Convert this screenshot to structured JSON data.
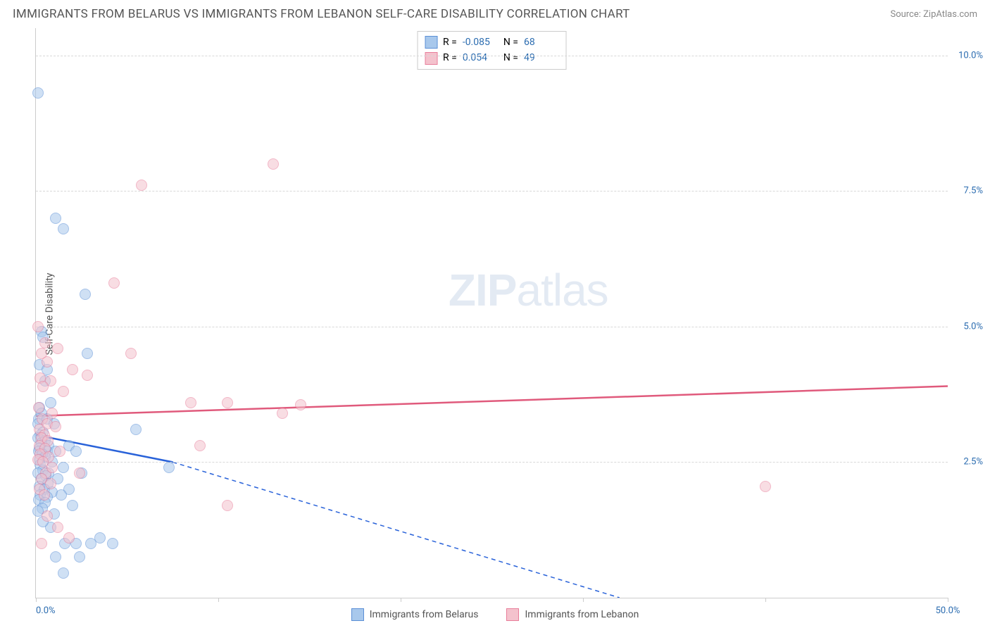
{
  "header": {
    "title": "IMMIGRANTS FROM BELARUS VS IMMIGRANTS FROM LEBANON SELF-CARE DISABILITY CORRELATION CHART",
    "source": "Source: ZipAtlas.com"
  },
  "chart": {
    "type": "scatter",
    "y_axis_label": "Self-Care Disability",
    "background_color": "#ffffff",
    "grid_color": "#d8d8d8",
    "axis_color": "#cccccc",
    "tick_label_color": "#2b6cb0",
    "label_color": "#555555",
    "xlim": [
      0,
      50
    ],
    "ylim": [
      0,
      10.5
    ],
    "x_ticks": [
      0,
      10,
      20,
      30,
      40,
      50
    ],
    "x_tick_labels": [
      "0.0%",
      "",
      "",
      "",
      "",
      "50.0%"
    ],
    "y_gridlines": [
      2.5,
      5.0,
      7.5,
      10.0
    ],
    "y_tick_labels": [
      "2.5%",
      "5.0%",
      "7.5%",
      "10.0%"
    ],
    "point_radius": 8,
    "point_opacity": 0.55,
    "watermark": "ZIPatlas",
    "series": [
      {
        "name": "Immigrants from Belarus",
        "fill": "#a8c8ec",
        "stroke": "#5b8fd6",
        "trend_color": "#2962d9",
        "trend_solid": {
          "x1": 0,
          "y1": 3.0,
          "x2": 7.5,
          "y2": 2.5
        },
        "trend_dashed": {
          "x1": 7.5,
          "y1": 2.5,
          "x2": 32,
          "y2": 0
        },
        "R": "-0.085",
        "N": "68",
        "points": [
          [
            0.1,
            9.3
          ],
          [
            1.1,
            7.0
          ],
          [
            1.5,
            6.8
          ],
          [
            2.7,
            5.6
          ],
          [
            0.3,
            4.9
          ],
          [
            0.4,
            4.8
          ],
          [
            2.8,
            4.5
          ],
          [
            0.2,
            4.3
          ],
          [
            0.6,
            4.2
          ],
          [
            0.5,
            4.0
          ],
          [
            0.8,
            3.6
          ],
          [
            0.2,
            3.5
          ],
          [
            0.3,
            3.4
          ],
          [
            0.15,
            3.3
          ],
          [
            0.6,
            3.3
          ],
          [
            1.0,
            3.2
          ],
          [
            0.1,
            3.2
          ],
          [
            5.5,
            3.1
          ],
          [
            0.4,
            3.05
          ],
          [
            0.25,
            3.0
          ],
          [
            0.1,
            2.95
          ],
          [
            0.5,
            2.9
          ],
          [
            0.3,
            2.85
          ],
          [
            1.8,
            2.8
          ],
          [
            0.7,
            2.8
          ],
          [
            0.2,
            2.75
          ],
          [
            0.14,
            2.7
          ],
          [
            0.6,
            2.7
          ],
          [
            1.1,
            2.7
          ],
          [
            2.2,
            2.7
          ],
          [
            0.35,
            2.65
          ],
          [
            0.5,
            2.6
          ],
          [
            0.18,
            2.55
          ],
          [
            0.9,
            2.5
          ],
          [
            0.22,
            2.45
          ],
          [
            1.5,
            2.4
          ],
          [
            0.4,
            2.35
          ],
          [
            7.3,
            2.4
          ],
          [
            0.7,
            2.3
          ],
          [
            0.12,
            2.3
          ],
          [
            0.55,
            2.25
          ],
          [
            2.5,
            2.3
          ],
          [
            1.2,
            2.2
          ],
          [
            0.3,
            2.2
          ],
          [
            0.65,
            2.1
          ],
          [
            0.2,
            2.05
          ],
          [
            1.8,
            2.0
          ],
          [
            0.45,
            2.0
          ],
          [
            0.9,
            1.95
          ],
          [
            0.25,
            1.9
          ],
          [
            0.6,
            1.85
          ],
          [
            1.4,
            1.9
          ],
          [
            0.15,
            1.8
          ],
          [
            0.5,
            1.75
          ],
          [
            2.0,
            1.7
          ],
          [
            0.35,
            1.65
          ],
          [
            0.1,
            1.6
          ],
          [
            1.0,
            1.55
          ],
          [
            1.6,
            1.0
          ],
          [
            2.2,
            1.0
          ],
          [
            3.0,
            1.0
          ],
          [
            4.2,
            1.0
          ],
          [
            1.1,
            0.75
          ],
          [
            2.4,
            0.75
          ],
          [
            1.5,
            0.45
          ],
          [
            0.8,
            1.3
          ],
          [
            0.4,
            1.4
          ],
          [
            3.5,
            1.1
          ]
        ]
      },
      {
        "name": "Immigrants from Lebanon",
        "fill": "#f4c2cd",
        "stroke": "#e87d9a",
        "trend_color": "#e05a7c",
        "trend_solid": {
          "x1": 0,
          "y1": 3.35,
          "x2": 50,
          "y2": 3.9
        },
        "trend_dashed": null,
        "R": "0.054",
        "N": "49",
        "points": [
          [
            13.0,
            8.0
          ],
          [
            5.8,
            7.6
          ],
          [
            4.3,
            5.8
          ],
          [
            0.1,
            5.0
          ],
          [
            0.5,
            4.7
          ],
          [
            1.2,
            4.6
          ],
          [
            0.3,
            4.5
          ],
          [
            5.2,
            4.5
          ],
          [
            0.6,
            4.35
          ],
          [
            2.0,
            4.2
          ],
          [
            2.8,
            4.1
          ],
          [
            0.25,
            4.05
          ],
          [
            0.8,
            4.0
          ],
          [
            0.4,
            3.9
          ],
          [
            1.5,
            3.8
          ],
          [
            8.5,
            3.6
          ],
          [
            10.5,
            3.6
          ],
          [
            14.5,
            3.55
          ],
          [
            0.15,
            3.5
          ],
          [
            13.5,
            3.4
          ],
          [
            0.9,
            3.4
          ],
          [
            0.35,
            3.3
          ],
          [
            0.6,
            3.2
          ],
          [
            1.1,
            3.15
          ],
          [
            0.2,
            3.1
          ],
          [
            0.45,
            3.0
          ],
          [
            0.3,
            2.95
          ],
          [
            0.65,
            2.9
          ],
          [
            9.0,
            2.8
          ],
          [
            0.18,
            2.8
          ],
          [
            0.5,
            2.75
          ],
          [
            1.3,
            2.7
          ],
          [
            0.25,
            2.65
          ],
          [
            0.7,
            2.6
          ],
          [
            0.12,
            2.55
          ],
          [
            0.4,
            2.5
          ],
          [
            2.4,
            2.3
          ],
          [
            0.55,
            2.3
          ],
          [
            0.3,
            2.2
          ],
          [
            0.8,
            2.1
          ],
          [
            40.0,
            2.05
          ],
          [
            0.2,
            2.0
          ],
          [
            0.45,
            1.9
          ],
          [
            10.5,
            1.7
          ],
          [
            0.6,
            1.5
          ],
          [
            1.2,
            1.3
          ],
          [
            1.8,
            1.1
          ],
          [
            0.3,
            1.0
          ],
          [
            0.9,
            2.4
          ]
        ]
      }
    ]
  },
  "legend_top": {
    "r_prefix": "R =",
    "n_prefix": "N ="
  }
}
